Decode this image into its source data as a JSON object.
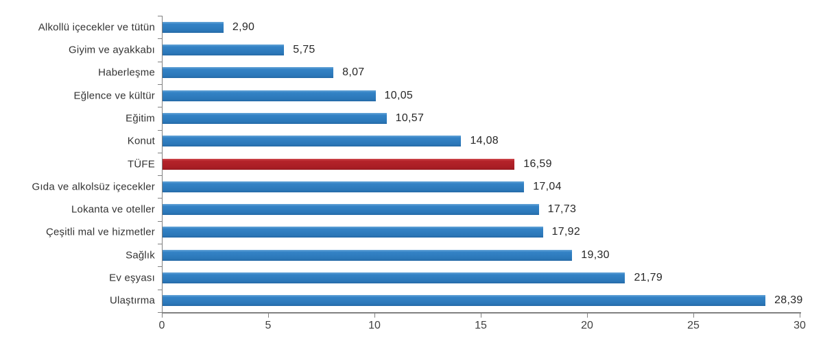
{
  "chart_data": {
    "type": "bar",
    "orientation": "horizontal",
    "title": "",
    "xlabel": "",
    "ylabel": "",
    "grid": false,
    "legend": "none",
    "xlim": [
      0,
      30
    ],
    "x_ticks": [
      0,
      5,
      10,
      15,
      20,
      25,
      30
    ],
    "x_tick_labels": [
      "0",
      "5",
      "10",
      "15",
      "20",
      "25",
      "30"
    ],
    "decimal_separator": ",",
    "categories": [
      "Alkollü içecekler ve tütün",
      "Giyim ve ayakkabı",
      "Haberleşme",
      "Eğlence ve kültür",
      "Eğitim",
      "Konut",
      "TÜFE",
      "Gıda ve alkolsüz içecekler",
      "Lokanta ve oteller",
      "Çeşitli mal ve hizmetler",
      "Sağlık",
      "Ev eşyası",
      "Ulaştırma"
    ],
    "values": [
      2.9,
      5.75,
      8.07,
      10.05,
      10.57,
      14.08,
      16.59,
      17.04,
      17.73,
      17.92,
      19.3,
      21.79,
      28.39
    ],
    "value_labels": [
      "2,90",
      "5,75",
      "8,07",
      "10,05",
      "10,57",
      "14,08",
      "16,59",
      "17,04",
      "17,73",
      "17,92",
      "19,30",
      "21,79",
      "28,39"
    ],
    "highlight_category": "TÜFE",
    "colors": {
      "bar": "#2B77B8",
      "highlight_bar": "#A81D24",
      "axis": "#808080",
      "category_text": "#333333",
      "value_text": "#262626",
      "tick_text": "#404040"
    }
  }
}
